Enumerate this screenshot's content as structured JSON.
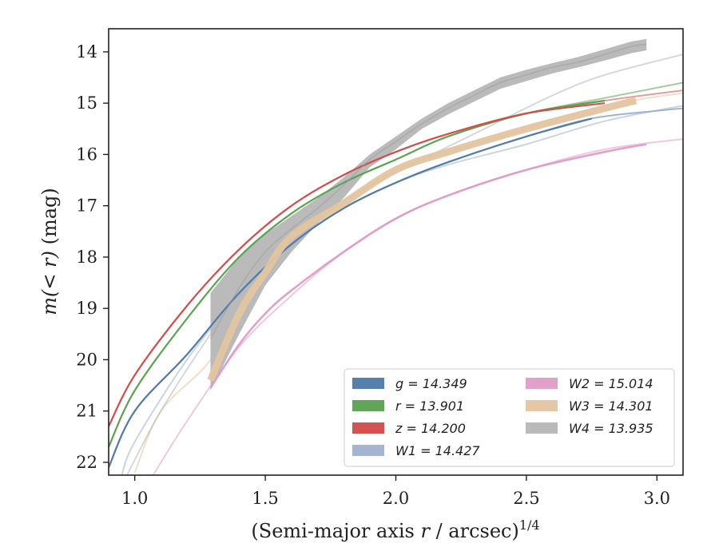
{
  "chart_data": {
    "type": "line",
    "xlabel": "(Semi-major axis r / arcsec)",
    "xlabel_var": "r",
    "xlabel_prefix": "(Semi-major axis ",
    "xlabel_suffix": " / arcsec)",
    "xlabel_superscript": "1/4",
    "ylabel": "m(< r) (mag)",
    "ylabel_var": "m(< r)",
    "ylabel_suffix": " (mag)",
    "xlim": [
      0.9,
      3.1
    ],
    "ylim": [
      22.25,
      13.55
    ],
    "y_inverted": true,
    "grid": false,
    "legend_position": "lower-right",
    "x_ticks": [
      1.0,
      1.5,
      2.0,
      2.5,
      3.0
    ],
    "x_tick_labels": [
      "1.0",
      "1.5",
      "2.0",
      "2.5",
      "3.0"
    ],
    "y_ticks": [
      14,
      15,
      16,
      17,
      18,
      19,
      20,
      21,
      22
    ],
    "y_tick_labels": [
      "14",
      "15",
      "16",
      "17",
      "18",
      "19",
      "20",
      "21",
      "22"
    ],
    "series": [
      {
        "name": "g = 14.349",
        "label_var": "g",
        "label_value": "14.349",
        "color": "#4c78a8",
        "model": [
          [
            0.9,
            22.1
          ],
          [
            1.0,
            21.0
          ],
          [
            1.2,
            19.9
          ],
          [
            1.4,
            18.7
          ],
          [
            1.6,
            17.75
          ],
          [
            1.8,
            17.05
          ],
          [
            2.0,
            16.55
          ],
          [
            2.2,
            16.15
          ],
          [
            2.5,
            15.65
          ],
          [
            2.75,
            15.3
          ],
          [
            3.0,
            15.15
          ],
          [
            3.1,
            15.1
          ]
        ],
        "data": [
          [
            0.9,
            22.1
          ],
          [
            1.0,
            21.0
          ],
          [
            1.2,
            19.9
          ],
          [
            1.4,
            18.7
          ],
          [
            1.6,
            17.75
          ],
          [
            1.8,
            17.05
          ],
          [
            2.0,
            16.55
          ],
          [
            2.2,
            16.15
          ],
          [
            2.5,
            15.65
          ],
          [
            2.75,
            15.3
          ]
        ],
        "band_width": 2.2
      },
      {
        "name": "r = 13.901",
        "label_var": "r",
        "label_value": "13.901",
        "color": "#59a14f",
        "model": [
          [
            0.9,
            21.7
          ],
          [
            1.0,
            20.6
          ],
          [
            1.2,
            19.2
          ],
          [
            1.4,
            18.0
          ],
          [
            1.6,
            17.15
          ],
          [
            1.8,
            16.55
          ],
          [
            2.0,
            16.1
          ],
          [
            2.2,
            15.65
          ],
          [
            2.5,
            15.2
          ],
          [
            2.8,
            14.9
          ],
          [
            3.1,
            14.6
          ]
        ],
        "data": [
          [
            0.9,
            21.7
          ],
          [
            1.0,
            20.6
          ],
          [
            1.2,
            19.2
          ],
          [
            1.4,
            18.0
          ],
          [
            1.6,
            17.15
          ],
          [
            1.8,
            16.55
          ],
          [
            2.0,
            16.1
          ],
          [
            2.2,
            15.65
          ],
          [
            2.5,
            15.2
          ],
          [
            2.8,
            14.95
          ]
        ],
        "band_width": 2.2
      },
      {
        "name": "z = 14.200",
        "label_var": "z",
        "label_value": "14.200",
        "color": "#d14a4a",
        "model": [
          [
            0.9,
            21.3
          ],
          [
            1.0,
            20.3
          ],
          [
            1.2,
            18.95
          ],
          [
            1.4,
            17.85
          ],
          [
            1.6,
            17.0
          ],
          [
            1.8,
            16.4
          ],
          [
            2.0,
            15.95
          ],
          [
            2.2,
            15.6
          ],
          [
            2.5,
            15.2
          ],
          [
            2.8,
            14.95
          ],
          [
            3.1,
            14.75
          ]
        ],
        "data": [
          [
            0.9,
            21.3
          ],
          [
            1.0,
            20.3
          ],
          [
            1.2,
            18.95
          ],
          [
            1.4,
            17.85
          ],
          [
            1.6,
            17.0
          ],
          [
            1.8,
            16.4
          ],
          [
            2.0,
            15.95
          ],
          [
            2.2,
            15.6
          ],
          [
            2.5,
            15.2
          ],
          [
            2.8,
            15.0
          ]
        ],
        "band_width": 2.2
      },
      {
        "name": "W1 = 14.427",
        "label_var": "W1",
        "label_value": "14.427",
        "color": "#9fb1cf",
        "model": [
          [
            0.95,
            22.25
          ],
          [
            1.0,
            21.6
          ],
          [
            1.2,
            20.0
          ],
          [
            1.4,
            18.75
          ],
          [
            1.6,
            17.75
          ],
          [
            1.8,
            17.05
          ],
          [
            2.0,
            16.55
          ],
          [
            2.2,
            16.2
          ],
          [
            2.5,
            15.8
          ],
          [
            2.8,
            15.35
          ],
          [
            3.1,
            15.05
          ]
        ],
        "data": [],
        "band_width": 2.0
      },
      {
        "name": "W2 = 15.014",
        "label_var": "W2",
        "label_value": "15.014",
        "color": "#de9cc7",
        "model": [
          [
            1.07,
            22.25
          ],
          [
            1.2,
            21.2
          ],
          [
            1.4,
            19.75
          ],
          [
            1.6,
            18.75
          ],
          [
            1.8,
            17.9
          ],
          [
            2.0,
            17.25
          ],
          [
            2.2,
            16.8
          ],
          [
            2.5,
            16.3
          ],
          [
            2.8,
            15.9
          ],
          [
            3.1,
            15.7
          ]
        ],
        "data": [
          [
            1.29,
            20.55
          ],
          [
            1.4,
            19.7
          ],
          [
            1.5,
            19.1
          ],
          [
            1.6,
            18.65
          ],
          [
            1.8,
            17.9
          ],
          [
            2.0,
            17.25
          ],
          [
            2.2,
            16.8
          ],
          [
            2.5,
            16.3
          ],
          [
            2.8,
            15.95
          ],
          [
            2.96,
            15.8
          ]
        ],
        "band_width": 2.6
      },
      {
        "name": "W3 = 14.301",
        "label_var": "W3",
        "label_value": "14.301",
        "color": "#e3c4a0",
        "model": [
          [
            1.0,
            22.2
          ],
          [
            1.1,
            21.0
          ],
          [
            1.29,
            20.0
          ],
          [
            1.4,
            18.8
          ],
          [
            1.6,
            17.6
          ],
          [
            1.8,
            16.95
          ],
          [
            2.0,
            16.3
          ],
          [
            2.2,
            15.95
          ],
          [
            2.5,
            15.5
          ],
          [
            2.8,
            15.05
          ],
          [
            3.1,
            14.8
          ]
        ],
        "data": [
          [
            1.29,
            20.4
          ],
          [
            1.4,
            19.1
          ],
          [
            1.5,
            18.3
          ],
          [
            1.6,
            17.6
          ],
          [
            1.8,
            16.95
          ],
          [
            2.0,
            16.3
          ],
          [
            2.2,
            15.95
          ],
          [
            2.5,
            15.5
          ],
          [
            2.8,
            15.1
          ],
          [
            2.92,
            14.95
          ]
        ],
        "band_width": 9
      },
      {
        "name": "W4 = 13.935",
        "label_var": "W4",
        "label_value": "13.935",
        "color": "#b6b6b6",
        "model": [
          [
            0.97,
            22.25
          ],
          [
            1.1,
            21.0
          ],
          [
            1.29,
            19.5
          ],
          [
            1.5,
            18.0
          ],
          [
            1.8,
            16.9
          ],
          [
            2.0,
            16.35
          ],
          [
            2.3,
            15.6
          ],
          [
            2.6,
            14.85
          ],
          [
            2.8,
            14.45
          ],
          [
            3.1,
            14.05
          ]
        ],
        "data": [
          [
            1.29,
            19.6
          ],
          [
            1.4,
            18.6
          ],
          [
            1.5,
            17.9
          ],
          [
            1.6,
            17.45
          ],
          [
            1.7,
            17.05
          ],
          [
            1.8,
            16.6
          ],
          [
            1.9,
            16.1
          ],
          [
            2.0,
            15.75
          ],
          [
            2.1,
            15.4
          ],
          [
            2.2,
            15.1
          ],
          [
            2.3,
            14.85
          ],
          [
            2.4,
            14.6
          ],
          [
            2.5,
            14.45
          ],
          [
            2.6,
            14.3
          ],
          [
            2.7,
            14.2
          ],
          [
            2.8,
            14.05
          ],
          [
            2.9,
            13.9
          ],
          [
            2.96,
            13.85
          ]
        ],
        "band_upper": [
          [
            1.29,
            18.7
          ],
          [
            1.4,
            18.0
          ],
          [
            1.5,
            17.55
          ],
          [
            1.6,
            17.2
          ],
          [
            1.7,
            16.85
          ],
          [
            1.8,
            16.45
          ],
          [
            1.9,
            16.0
          ],
          [
            2.0,
            15.65
          ],
          [
            2.1,
            15.3
          ],
          [
            2.2,
            15.0
          ],
          [
            2.3,
            14.75
          ],
          [
            2.4,
            14.5
          ],
          [
            2.5,
            14.35
          ],
          [
            2.6,
            14.22
          ],
          [
            2.7,
            14.1
          ],
          [
            2.8,
            13.95
          ],
          [
            2.9,
            13.8
          ],
          [
            2.96,
            13.75
          ]
        ],
        "band_lower": [
          [
            1.29,
            20.6
          ],
          [
            1.4,
            19.5
          ],
          [
            1.5,
            18.55
          ],
          [
            1.6,
            17.9
          ],
          [
            1.7,
            17.35
          ],
          [
            1.8,
            16.85
          ],
          [
            1.9,
            16.25
          ],
          [
            2.0,
            15.9
          ],
          [
            2.1,
            15.5
          ],
          [
            2.2,
            15.22
          ],
          [
            2.3,
            14.97
          ],
          [
            2.4,
            14.72
          ],
          [
            2.5,
            14.57
          ],
          [
            2.6,
            14.42
          ],
          [
            2.7,
            14.3
          ],
          [
            2.8,
            14.17
          ],
          [
            2.9,
            14.03
          ],
          [
            2.96,
            13.97
          ]
        ]
      }
    ]
  }
}
